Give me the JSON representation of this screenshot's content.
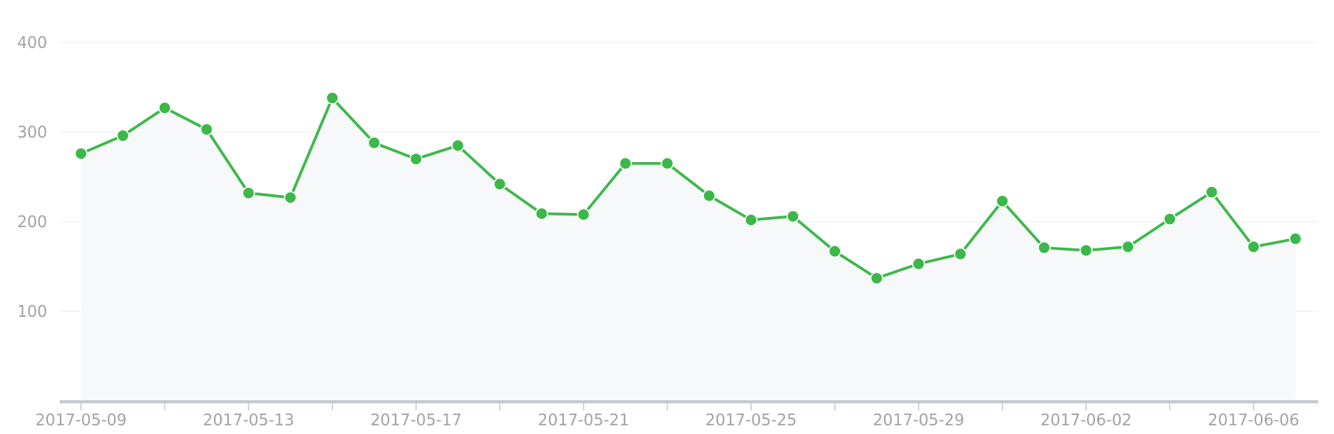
{
  "chart_data": {
    "type": "area",
    "ylim": [
      0,
      400
    ],
    "yticks": [
      100,
      200,
      300,
      400
    ],
    "grid": true,
    "x": [
      "2017-05-09",
      "2017-05-10",
      "2017-05-11",
      "2017-05-12",
      "2017-05-13",
      "2017-05-14",
      "2017-05-15",
      "2017-05-16",
      "2017-05-17",
      "2017-05-18",
      "2017-05-19",
      "2017-05-20",
      "2017-05-21",
      "2017-05-22",
      "2017-05-23",
      "2017-05-24",
      "2017-05-25",
      "2017-05-26",
      "2017-05-27",
      "2017-05-28",
      "2017-05-29",
      "2017-05-30",
      "2017-05-31",
      "2017-06-01",
      "2017-06-02",
      "2017-06-03",
      "2017-06-04",
      "2017-06-05",
      "2017-06-06",
      "2017-06-07"
    ],
    "xtick_labels": [
      "2017-05-09",
      "2017-05-13",
      "2017-05-17",
      "2017-05-21",
      "2017-05-25",
      "2017-05-29",
      "2017-06-02",
      "2017-06-06"
    ],
    "series": [
      {
        "values": [
          276,
          296,
          327,
          303,
          232,
          227,
          338,
          288,
          270,
          285,
          242,
          209,
          208,
          265,
          265,
          229,
          202,
          206,
          167,
          137,
          153,
          164,
          223,
          171,
          168,
          172,
          203,
          233,
          172,
          181
        ]
      }
    ],
    "colors": {
      "line": "#3cb84a",
      "point": "#3cb84a",
      "area": "#f7f8fa"
    }
  }
}
